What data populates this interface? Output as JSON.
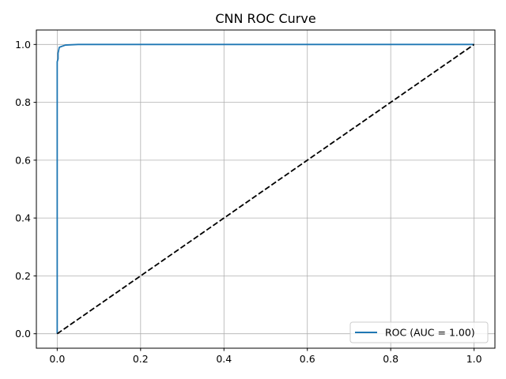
{
  "chart_data": {
    "type": "line",
    "title": "CNN ROC Curve",
    "xlabel": "",
    "ylabel": "",
    "xlim": [
      -0.05,
      1.05
    ],
    "ylim": [
      -0.05,
      1.05
    ],
    "xticks": [
      0.0,
      0.2,
      0.4,
      0.6,
      0.8,
      1.0
    ],
    "yticks": [
      0.0,
      0.2,
      0.4,
      0.6,
      0.8,
      1.0
    ],
    "xtick_labels": [
      "0.0",
      "0.2",
      "0.4",
      "0.6",
      "0.8",
      "1.0"
    ],
    "ytick_labels": [
      "0.0",
      "0.2",
      "0.4",
      "0.6",
      "0.8",
      "1.0"
    ],
    "grid": true,
    "legend_position": "lower-right",
    "series": [
      {
        "name": "ROC (AUC = 1.00)",
        "color": "#1f77b4",
        "style": "solid",
        "x": [
          0.0,
          0.0,
          0.0,
          0.0,
          0.002,
          0.002,
          0.005,
          0.01,
          0.02,
          0.05,
          0.1,
          0.3,
          0.6,
          1.0
        ],
        "y": [
          0.0,
          0.5,
          0.8,
          0.94,
          0.95,
          0.97,
          0.99,
          0.993,
          0.998,
          1.0,
          1.0,
          1.0,
          1.0,
          1.0
        ]
      },
      {
        "name": "",
        "color": "#000000",
        "style": "dashed",
        "x": [
          0.0,
          1.0
        ],
        "y": [
          0.0,
          1.0
        ]
      }
    ]
  }
}
